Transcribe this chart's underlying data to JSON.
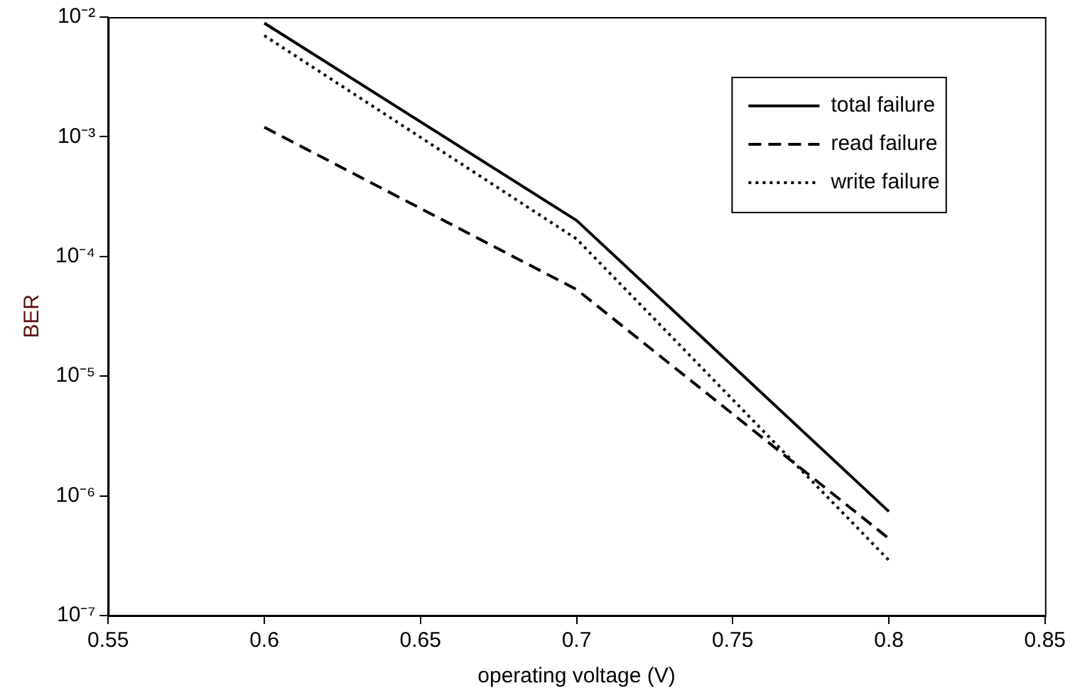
{
  "chart_data": {
    "type": "line",
    "xlabel": "operating voltage (V)",
    "ylabel": "BER",
    "x": [
      0.6,
      0.7,
      0.8
    ],
    "series": [
      {
        "name": "total failure",
        "color": "#000000",
        "line_style": "solid",
        "values": [
          0.0089,
          0.0002,
          7.4e-07
        ]
      },
      {
        "name": "read failure",
        "color": "#000000",
        "line_style": "dashed",
        "values": [
          0.0012,
          5.3e-05,
          4.4e-07
        ]
      },
      {
        "name": "write failure",
        "color": "#000000",
        "line_style": "dotted",
        "values": [
          0.007,
          0.00014,
          2.9e-07
        ]
      }
    ],
    "log": "y",
    "xlim": [
      0.55,
      0.85
    ],
    "xticks": [
      0.55,
      0.6,
      0.65,
      0.7,
      0.75,
      0.8,
      0.85
    ],
    "ylim": [
      1e-07,
      0.01
    ],
    "yticks": [
      {
        "value": 1e-07,
        "label": "10⁻⁷"
      },
      {
        "value": 1e-06,
        "label": "10⁻⁶"
      },
      {
        "value": 1e-05,
        "label": "10⁻⁵"
      },
      {
        "value": 0.0001,
        "label": "10⁻⁴"
      },
      {
        "value": 0.001,
        "label": "10⁻³"
      },
      {
        "value": 0.01,
        "label": "10⁻²"
      }
    ],
    "grid": false,
    "legend": "top right",
    "marker": "none"
  }
}
